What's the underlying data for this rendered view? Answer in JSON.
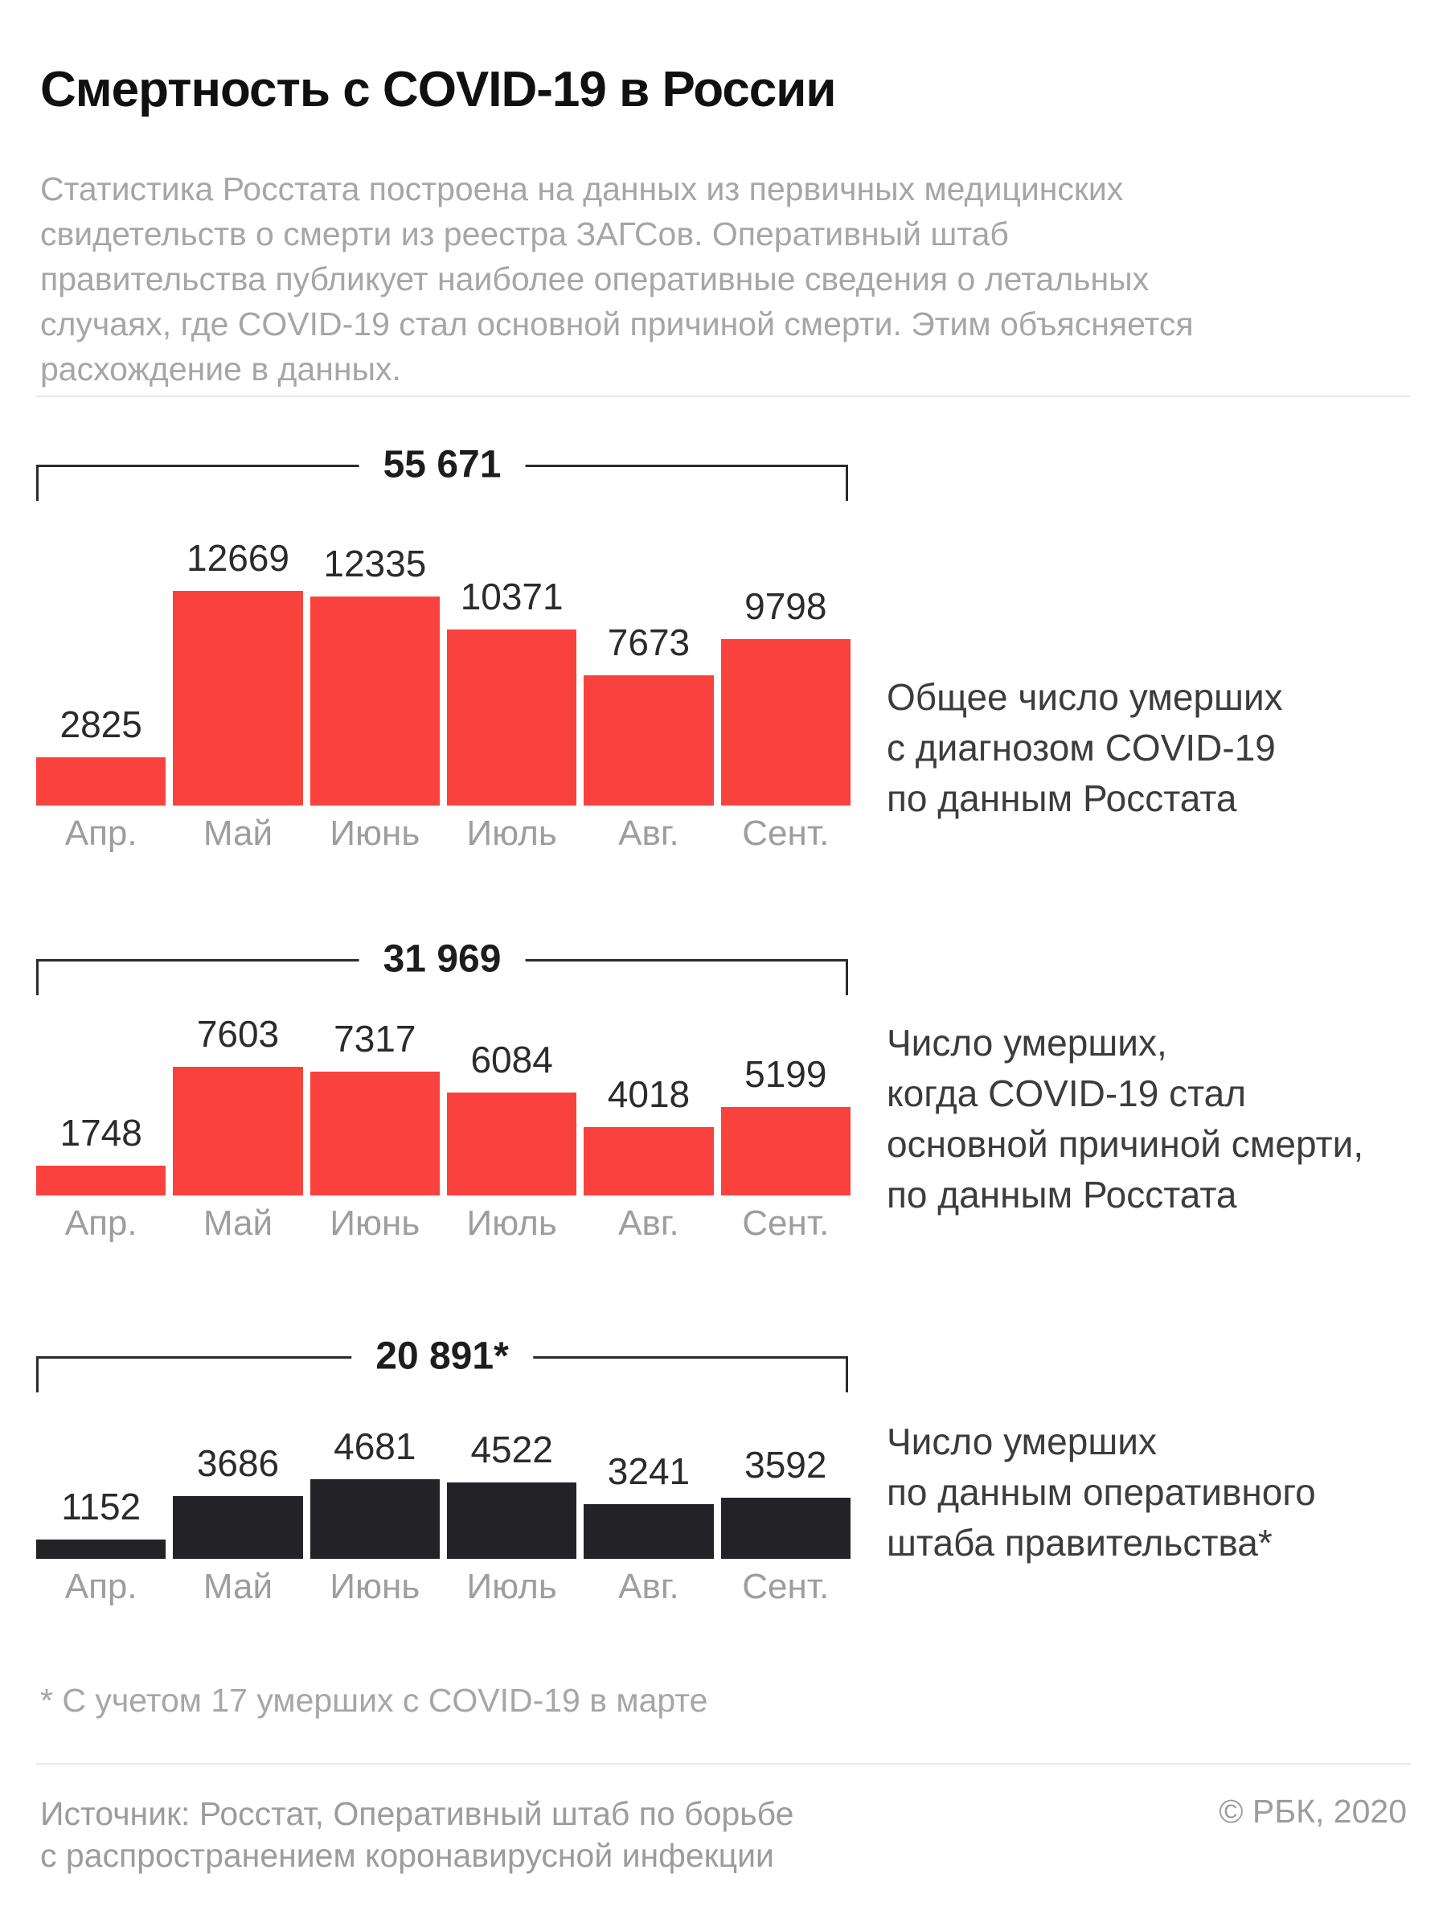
{
  "title": "Смертность с COVID-19 в России",
  "intro": "Статистика Росстата построена на данных из первичных медицинских свидетельств о смерти из реестра ЗАГСов. Оперативный штаб правительства публикует наиболее оперативные сведения о летальных случаях, где COVID-19 стал основной причиной смерти. Этим объясняется расхождение в данных.",
  "colors": {
    "rosstat_bar": "#f9423e",
    "gov_bar": "#232227",
    "bracket_line": "#2b2b2b"
  },
  "captions": [
    [
      "Общее число умерших",
      "с диагнозом COVID-19",
      "по данным Росстата"
    ],
    [
      "Число умерших,",
      "когда COVID-19 стал",
      "основной причиной смерти,",
      "по данным Росстата"
    ],
    [
      "Число умерших",
      "по данным оперативного",
      "штаба правительства*"
    ]
  ],
  "chart_data": [
    {
      "type": "bar",
      "title": "Общее число умерших с диагнозом COVID-19 по данным Росстата",
      "categories": [
        "Апр.",
        "Май",
        "Июнь",
        "Июль",
        "Авг.",
        "Сент."
      ],
      "values": [
        2825,
        12669,
        12335,
        10371,
        7673,
        9798
      ],
      "total": 55671,
      "total_label": "55 671",
      "bar_color": "#f9423e",
      "legend_position": "right"
    },
    {
      "type": "bar",
      "title": "Число умерших, когда COVID-19 стал основной причиной смерти, по данным Росстата",
      "categories": [
        "Апр.",
        "Май",
        "Июнь",
        "Июль",
        "Авг.",
        "Сент."
      ],
      "values": [
        1748,
        7603,
        7317,
        6084,
        4018,
        5199
      ],
      "total": 31969,
      "total_label": "31 969",
      "bar_color": "#f9423e",
      "legend_position": "right"
    },
    {
      "type": "bar",
      "title": "Число умерших по данным оперативного штаба правительства*",
      "categories": [
        "Апр.",
        "Май",
        "Июнь",
        "Июль",
        "Авг.",
        "Сент."
      ],
      "values": [
        1152,
        3686,
        4681,
        4522,
        3241,
        3592
      ],
      "total": 20891,
      "total_label": "20 891*",
      "bar_color": "#232227",
      "legend_position": "right"
    }
  ],
  "footnote": "* С учетом 17 умерших с COVID-19 в марте",
  "source_lines": [
    "Источник: Росстат, Оперативный штаб по борьбе",
    "с распространением коронавирусной инфекции"
  ],
  "copyright": "© РБК, 2020"
}
